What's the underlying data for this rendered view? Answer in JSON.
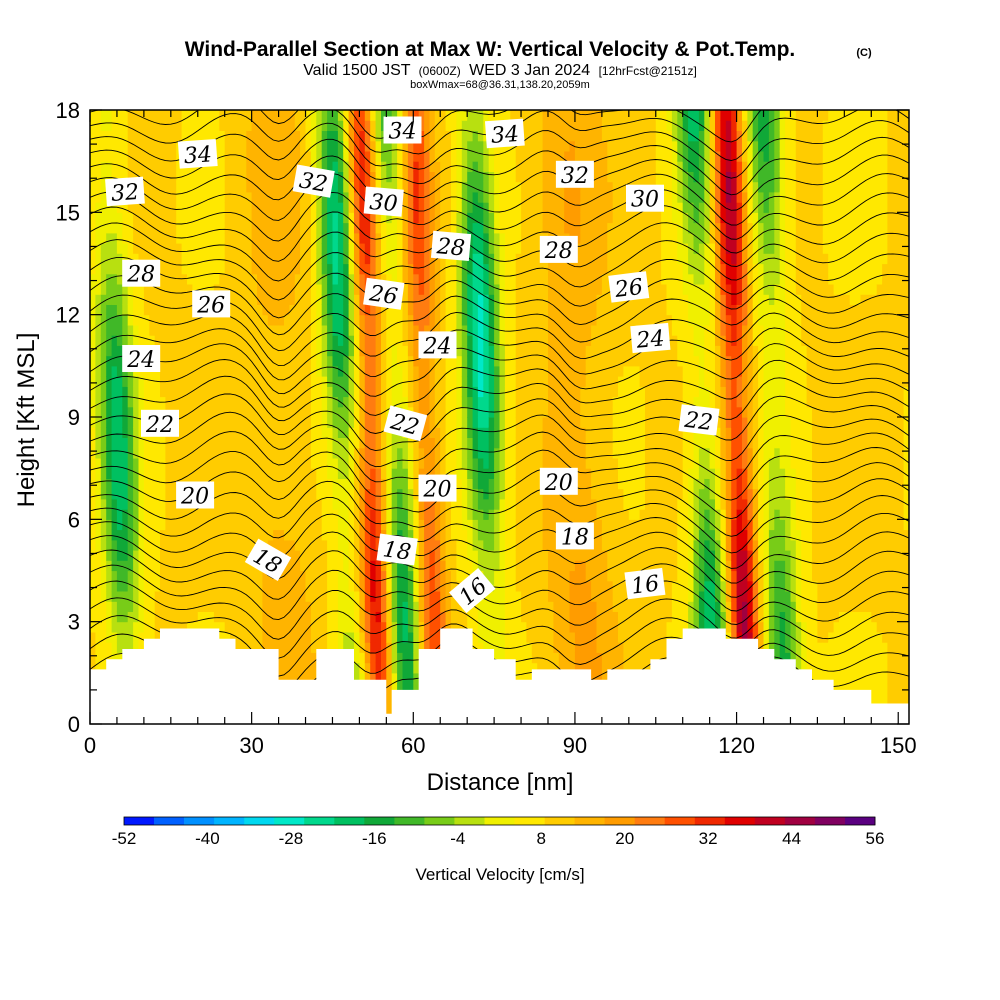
{
  "header": {
    "title": "Wind-Parallel Section at Max W: Vertical Velocity & Pot.Temp.",
    "copyright": "(C)",
    "valid_prefix": "Valid 1500 JST",
    "valid_utc": "(0600Z)",
    "valid_date": "WED 3 Jan 2024",
    "forecast": "[12hrFcst@2151z]",
    "box_info": "boxWmax=68@36.31,138.20,2059m"
  },
  "chart_data": {
    "type": "heatmap",
    "xlabel": "Distance [nm]",
    "ylabel": "Height [Kft MSL]",
    "xlim": [
      0,
      152
    ],
    "ylim": [
      0,
      18
    ],
    "x_ticks": [
      "0",
      "30",
      "60",
      "90",
      "120",
      "150"
    ],
    "y_ticks": [
      "0",
      "3",
      "6",
      "9",
      "12",
      "15",
      "18"
    ],
    "colorbar": {
      "label": "Vertical Velocity [cm/s]",
      "tick_labels": [
        "-52",
        "-40",
        "-28",
        "-16",
        "-4",
        "8",
        "20",
        "32",
        "44",
        "56"
      ],
      "range": [
        -52,
        56
      ],
      "colors": [
        "#0018ff",
        "#0060ff",
        "#0090ff",
        "#00b4ff",
        "#00d8f0",
        "#00e8c8",
        "#00d88c",
        "#00c060",
        "#10a838",
        "#40b828",
        "#78cc18",
        "#b8e010",
        "#f0f000",
        "#ffe800",
        "#ffcc00",
        "#ffb400",
        "#ff9c00",
        "#ff7c10",
        "#ff5000",
        "#f02800",
        "#e00000",
        "#c00020",
        "#a00040",
        "#800060",
        "#5a0080"
      ]
    },
    "updrafts_cm_s": [
      {
        "x_nm": 52,
        "peak": 40
      },
      {
        "x_nm": 120,
        "peak": 45
      },
      {
        "x_nm": 62,
        "peak": 32
      },
      {
        "x_nm": 35,
        "peak": 15
      },
      {
        "x_nm": 90,
        "peak": 18
      }
    ],
    "downdrafts_cm_s": [
      {
        "x_nm": 5,
        "peak": -20
      },
      {
        "x_nm": 47,
        "peak": -24
      },
      {
        "x_nm": 57,
        "peak": -20
      },
      {
        "x_nm": 73,
        "peak": -28
      },
      {
        "x_nm": 114,
        "peak": -22
      },
      {
        "x_nm": 127,
        "peak": -18
      }
    ],
    "potential_temperature_labels": [
      {
        "text": "34",
        "x_nm": 20,
        "height_kft": 16.7,
        "angle": -4
      },
      {
        "text": "34",
        "x_nm": 58,
        "height_kft": 17.4,
        "angle": 0
      },
      {
        "text": "34",
        "x_nm": 77,
        "height_kft": 17.3,
        "angle": -4
      },
      {
        "text": "32",
        "x_nm": 6.5,
        "height_kft": 15.6,
        "angle": -4
      },
      {
        "text": "32",
        "x_nm": 41.5,
        "height_kft": 15.9,
        "angle": 10
      },
      {
        "text": "32",
        "x_nm": 90,
        "height_kft": 16.1,
        "angle": 0
      },
      {
        "text": "30",
        "x_nm": 54.5,
        "height_kft": 15.3,
        "angle": 5
      },
      {
        "text": "30",
        "x_nm": 103,
        "height_kft": 15.4,
        "angle": 0
      },
      {
        "text": "28",
        "x_nm": 9.5,
        "height_kft": 13.2,
        "angle": 0
      },
      {
        "text": "28",
        "x_nm": 67,
        "height_kft": 14.0,
        "angle": 5
      },
      {
        "text": "28",
        "x_nm": 87,
        "height_kft": 13.9,
        "angle": 0
      },
      {
        "text": "26",
        "x_nm": 22.5,
        "height_kft": 12.3,
        "angle": 0
      },
      {
        "text": "26",
        "x_nm": 54.5,
        "height_kft": 12.6,
        "angle": 8
      },
      {
        "text": "26",
        "x_nm": 100,
        "height_kft": 12.8,
        "angle": -7
      },
      {
        "text": "24",
        "x_nm": 9.5,
        "height_kft": 10.7,
        "angle": 0
      },
      {
        "text": "24",
        "x_nm": 64.5,
        "height_kft": 11.1,
        "angle": 0
      },
      {
        "text": "24",
        "x_nm": 104,
        "height_kft": 11.3,
        "angle": -5
      },
      {
        "text": "22",
        "x_nm": 13,
        "height_kft": 8.8,
        "angle": 0
      },
      {
        "text": "22",
        "x_nm": 58.5,
        "height_kft": 8.8,
        "angle": 15
      },
      {
        "text": "22",
        "x_nm": 113,
        "height_kft": 8.9,
        "angle": 7
      },
      {
        "text": "20",
        "x_nm": 19.5,
        "height_kft": 6.7,
        "angle": 0
      },
      {
        "text": "20",
        "x_nm": 64.5,
        "height_kft": 6.9,
        "angle": 0
      },
      {
        "text": "20",
        "x_nm": 87,
        "height_kft": 7.1,
        "angle": 0
      },
      {
        "text": "18",
        "x_nm": 33,
        "height_kft": 4.8,
        "angle": 30
      },
      {
        "text": "18",
        "x_nm": 57,
        "height_kft": 5.1,
        "angle": 8
      },
      {
        "text": "18",
        "x_nm": 90,
        "height_kft": 5.5,
        "angle": 0
      },
      {
        "text": "16",
        "x_nm": 71,
        "height_kft": 3.9,
        "angle": -40
      },
      {
        "text": "16",
        "x_nm": 103,
        "height_kft": 4.1,
        "angle": -7
      }
    ],
    "terrain_profile": [
      [
        0,
        1.6
      ],
      [
        3,
        1.6
      ],
      [
        3,
        1.9
      ],
      [
        6,
        1.9
      ],
      [
        6,
        2.2
      ],
      [
        10,
        2.2
      ],
      [
        10,
        2.5
      ],
      [
        13,
        2.5
      ],
      [
        13,
        2.8
      ],
      [
        24,
        2.8
      ],
      [
        24,
        2.5
      ],
      [
        27,
        2.5
      ],
      [
        27,
        2.2
      ],
      [
        35,
        2.2
      ],
      [
        35,
        1.3
      ],
      [
        42,
        1.3
      ],
      [
        42,
        2.2
      ],
      [
        49,
        2.2
      ],
      [
        49,
        1.3
      ],
      [
        55,
        1.3
      ],
      [
        55,
        0.3
      ],
      [
        56,
        0.3
      ],
      [
        56,
        1.0
      ],
      [
        61,
        1.0
      ],
      [
        61,
        2.2
      ],
      [
        65,
        2.2
      ],
      [
        65,
        2.8
      ],
      [
        71,
        2.8
      ],
      [
        71,
        2.2
      ],
      [
        75,
        2.2
      ],
      [
        75,
        1.9
      ],
      [
        79,
        1.9
      ],
      [
        79,
        1.3
      ],
      [
        82,
        1.3
      ],
      [
        82,
        1.6
      ],
      [
        93,
        1.6
      ],
      [
        93,
        1.3
      ],
      [
        96,
        1.3
      ],
      [
        96,
        1.6
      ],
      [
        104,
        1.6
      ],
      [
        104,
        1.9
      ],
      [
        107,
        1.9
      ],
      [
        107,
        2.5
      ],
      [
        110,
        2.5
      ],
      [
        110,
        2.8
      ],
      [
        118,
        2.8
      ],
      [
        118,
        2.5
      ],
      [
        124,
        2.5
      ],
      [
        124,
        2.2
      ],
      [
        127,
        2.2
      ],
      [
        127,
        1.9
      ],
      [
        131,
        1.9
      ],
      [
        131,
        1.6
      ],
      [
        134,
        1.6
      ],
      [
        134,
        1.3
      ],
      [
        138,
        1.3
      ],
      [
        138,
        1.0
      ],
      [
        145,
        1.0
      ],
      [
        145,
        0.6
      ],
      [
        152,
        0.6
      ]
    ]
  }
}
